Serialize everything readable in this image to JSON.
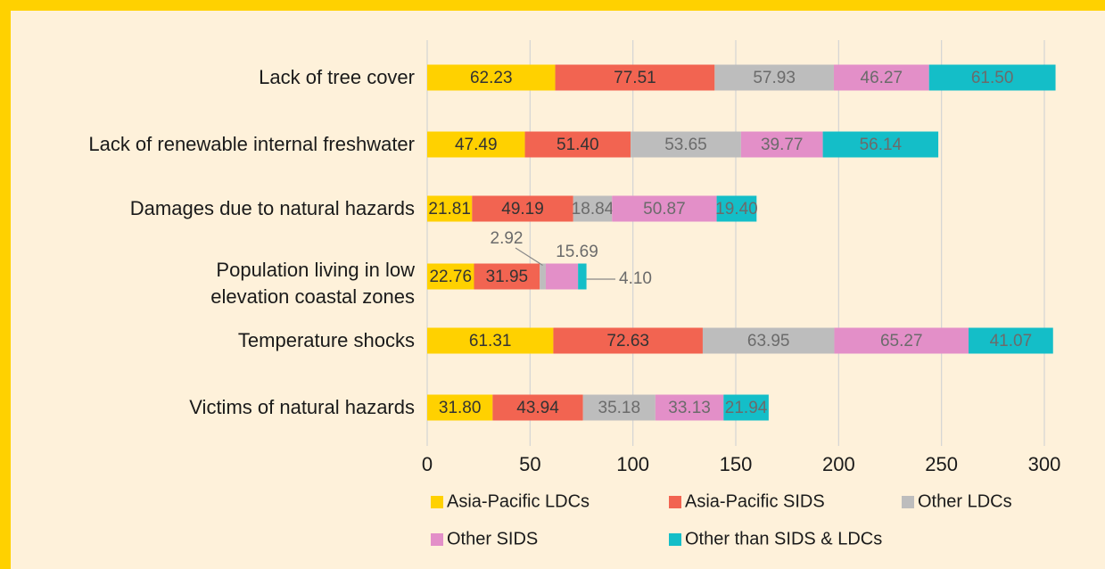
{
  "chart_data": {
    "type": "bar",
    "orientation": "horizontal",
    "stacked": true,
    "categories": [
      "Lack of tree cover",
      "Lack of renewable internal freshwater",
      "Damages due to natural hazards",
      "Population living in low\nelevation coastal zones",
      "Temperature shocks",
      "Victims of natural hazards"
    ],
    "series": [
      {
        "name": "Asia-Pacific LDCs",
        "color": "#FFD100",
        "label_color": "#333333",
        "values": [
          62.23,
          47.49,
          21.81,
          22.76,
          61.31,
          31.8
        ],
        "value_labels": [
          "62.23",
          "47.49",
          "21.81",
          "22.76",
          "61.31",
          "31.80"
        ]
      },
      {
        "name": "Asia-Pacific SIDS",
        "color": "#F26451",
        "label_color": "#333333",
        "values": [
          77.51,
          51.4,
          49.19,
          31.95,
          72.63,
          43.94
        ],
        "value_labels": [
          "77.51",
          "51.40",
          "49.19",
          "31.95",
          "72.63",
          "43.94"
        ]
      },
      {
        "name": "Other LDCs",
        "color": "#BDBDBD",
        "label_color": "#6b6b6b",
        "values": [
          57.93,
          53.65,
          18.84,
          2.92,
          63.95,
          35.18
        ],
        "value_labels": [
          "57.93",
          "53.65",
          "18.84",
          "2.92",
          "63.95",
          "35.18"
        ]
      },
      {
        "name": "Other SIDS",
        "color": "#E38FC8",
        "label_color": "#6b6b6b",
        "values": [
          46.27,
          39.77,
          50.87,
          15.69,
          65.27,
          33.13
        ],
        "value_labels": [
          "46.27",
          "39.77",
          "50.87",
          "15.69",
          "65.27",
          "33.13"
        ]
      },
      {
        "name": "Other than SIDS & LDCs",
        "color": "#14BEC8",
        "label_color": "#6b6b6b",
        "values": [
          61.5,
          56.14,
          19.4,
          4.1,
          41.07,
          21.94
        ],
        "value_labels": [
          "61.50",
          "56.14",
          "19.40",
          "4.10",
          "41.07",
          "21.94"
        ]
      }
    ],
    "xlim": [
      0,
      310
    ],
    "xticks": [
      0,
      50,
      100,
      150,
      200,
      250,
      300
    ],
    "grid": true,
    "legend": "bottom"
  }
}
